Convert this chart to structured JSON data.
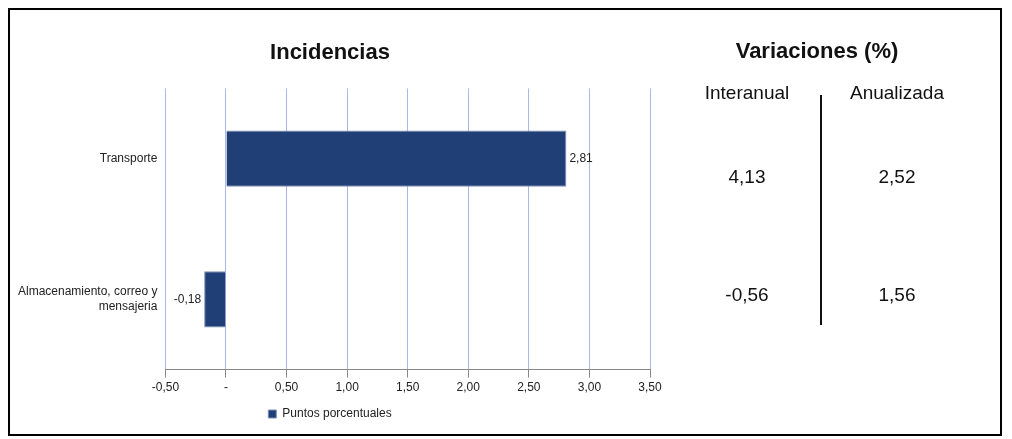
{
  "chart_data": {
    "type": "bar",
    "orientation": "horizontal",
    "title": "Incidencias",
    "categories": [
      "Transporte",
      "Almacenamiento, correo y mensajeria"
    ],
    "series": [
      {
        "name": "Puntos porcentuales",
        "color": "#203f77",
        "values": [
          2.81,
          -0.18
        ],
        "value_labels": [
          "2,81",
          "-0,18"
        ]
      }
    ],
    "xlim": [
      -0.5,
      3.5
    ],
    "xticks": [
      {
        "value": -0.5,
        "label": "-0,50"
      },
      {
        "value": 0,
        "label": "-"
      },
      {
        "value": 0.5,
        "label": "0,50"
      },
      {
        "value": 1,
        "label": "1,00"
      },
      {
        "value": 1.5,
        "label": "1,50"
      },
      {
        "value": 2,
        "label": "2,00"
      },
      {
        "value": 2.5,
        "label": "2,50"
      },
      {
        "value": 3,
        "label": "3,00"
      },
      {
        "value": 3.5,
        "label": "3,50"
      }
    ],
    "grid": "x",
    "legend": "bottom",
    "annotations": [
      "Variaciones (%)",
      "Interanual",
      "Anualizada",
      "4,13",
      "2,52",
      "-0,56",
      "1,56"
    ]
  }
}
